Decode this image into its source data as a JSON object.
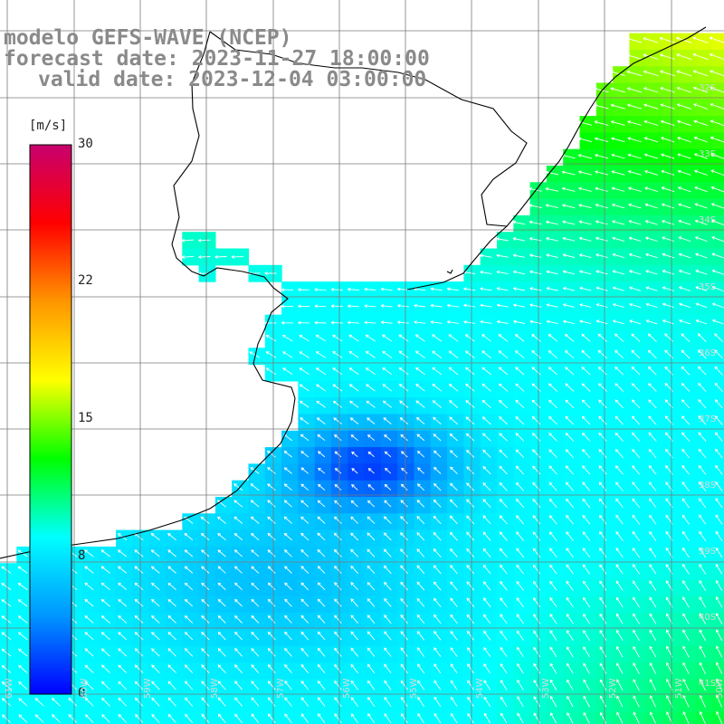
{
  "title": {
    "line1": "modelo GEFS-WAVE (NCEP)",
    "line2": "forecast date: 2023-11-27 18:00:00",
    "line3": "valid date: 2023-12-04 03:00:00"
  },
  "colorbar": {
    "unit": "[m/s]",
    "ticks": [
      "30",
      "22",
      "15",
      "8",
      "0"
    ],
    "range": [
      0,
      30
    ],
    "colors": [
      "#0000ff",
      "#0096ff",
      "#00ffff",
      "#00ff00",
      "#ffff00",
      "#ff9600",
      "#ff0000",
      "#c8006e"
    ]
  },
  "grid_labels": {
    "lat": [
      "32S",
      "33S",
      "34S",
      "35S",
      "36S",
      "37S",
      "38S",
      "39S",
      "40S",
      "41S"
    ],
    "lon": [
      "61W",
      "60W",
      "59W",
      "58W",
      "57W",
      "56W",
      "55W",
      "54W",
      "53W",
      "52W",
      "51W",
      "50W"
    ]
  },
  "colors": {
    "land": "#ffffff",
    "grid": "#7a7a7a",
    "coast": "#000000",
    "title": "#8a8a8a",
    "arrow": "#ffffff"
  }
}
